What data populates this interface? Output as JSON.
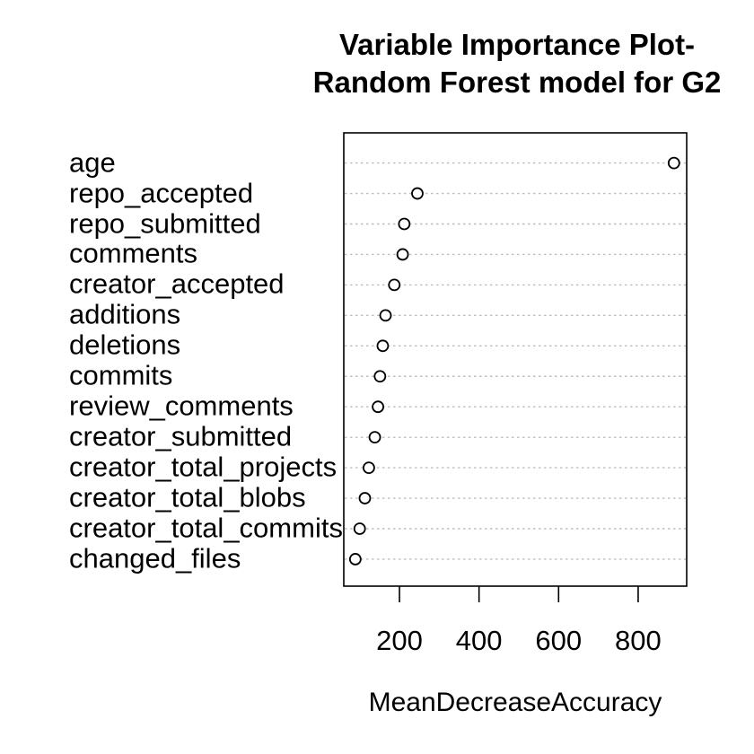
{
  "chart_data": {
    "type": "scatter",
    "variant": "dotchart-variable-importance",
    "title_lines": [
      "Variable Importance Plot-",
      "Random Forest model for G2"
    ],
    "xlabel": "MeanDecreaseAccuracy",
    "ylabel": "",
    "categories": [
      "age",
      "repo_accepted",
      "repo_submitted",
      "comments",
      "creator_accepted",
      "additions",
      "deletions",
      "commits",
      "review_comments",
      "creator_submitted",
      "creator_total_projects",
      "creator_total_blobs",
      "creator_total_commits",
      "changed_files"
    ],
    "values": [
      890,
      245,
      212,
      208,
      187,
      165,
      158,
      151,
      146,
      138,
      123,
      113,
      100,
      89
    ],
    "xlim": [
      60,
      922
    ],
    "x_ticks": [
      200,
      400,
      600,
      800
    ],
    "grid": "horizontal dotted lines per category",
    "legend": "none",
    "marker": "open-circle",
    "colors": {
      "background": "#ffffff",
      "text": "#000000",
      "box_border": "#000000",
      "gridline": "#bdbdbd",
      "marker_stroke": "#000000",
      "marker_fill": "#ffffff"
    }
  }
}
